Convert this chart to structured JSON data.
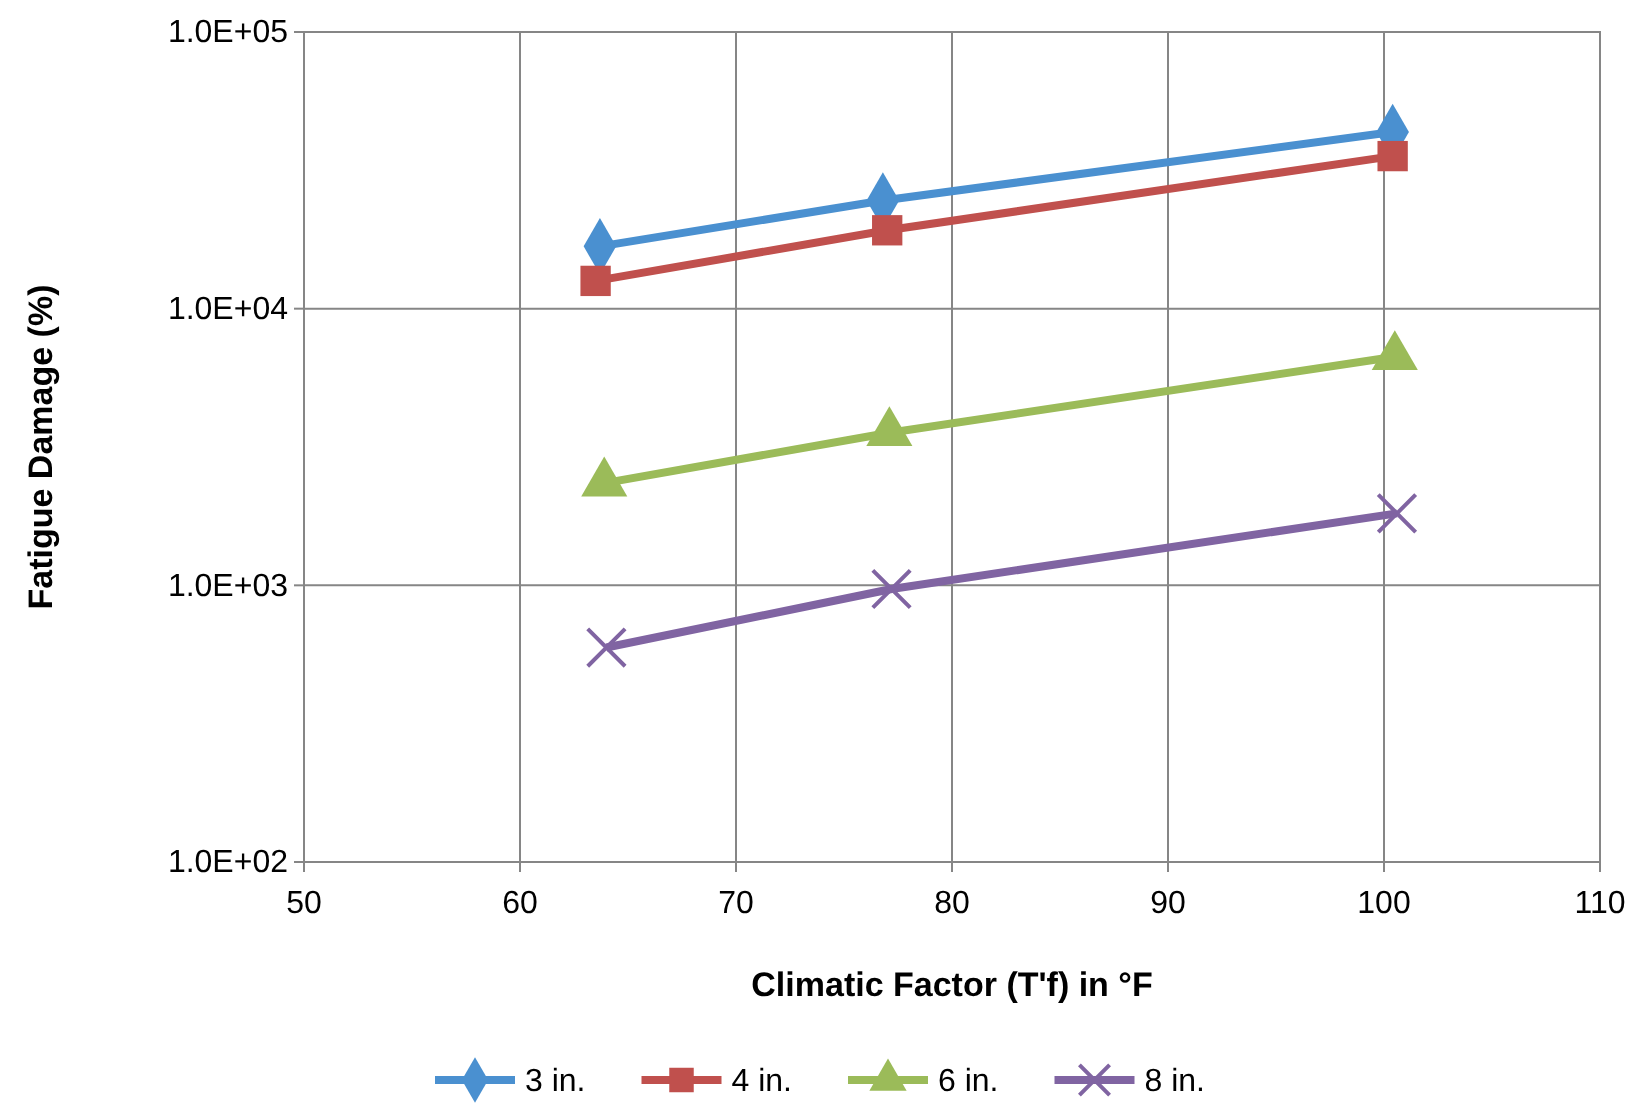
{
  "chart_data": {
    "type": "line",
    "xlabel": "Climatic Factor (T'f) in °F",
    "ylabel": "Fatigue Damage (%)",
    "log": "y",
    "grid": true,
    "legend": "bottom",
    "xlim": [
      50,
      110
    ],
    "xticks": [
      50,
      60,
      70,
      80,
      90,
      100,
      110
    ],
    "ylim": [
      100,
      100000
    ],
    "yticks": [
      {
        "value": 100,
        "label": "1.0E+02"
      },
      {
        "value": 1000,
        "label": "1.0E+03"
      },
      {
        "value": 10000,
        "label": "1.0E+04"
      },
      {
        "value": 100000,
        "label": "1.0E+05"
      }
    ],
    "series": [
      {
        "name": "3 in.",
        "color": "#4a90d0",
        "marker": "diamond",
        "x": [
          63.7,
          76.8,
          100.4
        ],
        "values": [
          16800,
          24600,
          43500
        ]
      },
      {
        "name": "4 in.",
        "color": "#c0504d",
        "marker": "square",
        "x": [
          63.5,
          77,
          100.4
        ],
        "values": [
          12600,
          19200,
          35600
        ]
      },
      {
        "name": "6 in.",
        "color": "#9bbb59",
        "marker": "triangle",
        "x": [
          63.9,
          77.1,
          100.5
        ],
        "values": [
          2340,
          3560,
          6700
        ]
      },
      {
        "name": "8 in.",
        "color": "#8064a2",
        "marker": "cross",
        "x": [
          64,
          77.2,
          100.6
        ],
        "values": [
          596,
          970,
          1820
        ]
      }
    ]
  }
}
